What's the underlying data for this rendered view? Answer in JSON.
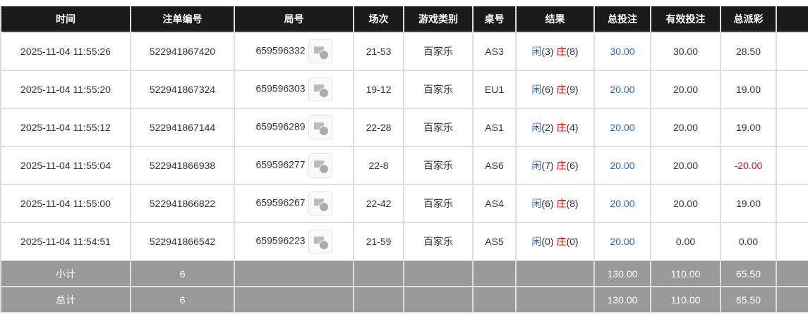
{
  "headers": [
    "时间",
    "注单编号",
    "局号",
    "场次",
    "游戏类别",
    "桌号",
    "结果",
    "总投注",
    "有效投注",
    "总派彩"
  ],
  "rows": [
    {
      "time": "2025-11-04 11:55:26",
      "bet_id": "522941867420",
      "round": "659596332",
      "shoe": "21-53",
      "game": "百家乐",
      "table": "AS3",
      "player_label": "闲",
      "player": "(3)",
      "banker_label": "庄",
      "banker": "(8)",
      "total": "30.00",
      "valid": "30.00",
      "payout": "28.50"
    },
    {
      "time": "2025-11-04 11:55:20",
      "bet_id": "522941867324",
      "round": "659596303",
      "shoe": "19-12",
      "game": "百家乐",
      "table": "EU1",
      "player_label": "闲",
      "player": "(6)",
      "banker_label": "庄",
      "banker": "(9)",
      "total": "20.00",
      "valid": "20.00",
      "payout": "19.00"
    },
    {
      "time": "2025-11-04 11:55:12",
      "bet_id": "522941867144",
      "round": "659596289",
      "shoe": "22-28",
      "game": "百家乐",
      "table": "AS1",
      "player_label": "闲",
      "player": "(2)",
      "banker_label": "庄",
      "banker": "(4)",
      "total": "20.00",
      "valid": "20.00",
      "payout": "19.00"
    },
    {
      "time": "2025-11-04 11:55:04",
      "bet_id": "522941866938",
      "round": "659596277",
      "shoe": "22-8",
      "game": "百家乐",
      "table": "AS6",
      "player_label": "闲",
      "player": "(7)",
      "banker_label": "庄",
      "banker": "(6)",
      "total": "20.00",
      "valid": "20.00",
      "payout": "-20.00"
    },
    {
      "time": "2025-11-04 11:55:00",
      "bet_id": "522941866822",
      "round": "659596267",
      "shoe": "22-42",
      "game": "百家乐",
      "table": "AS4",
      "player_label": "闲",
      "player": "(6)",
      "banker_label": "庄",
      "banker": "(8)",
      "total": "20.00",
      "valid": "20.00",
      "payout": "19.00"
    },
    {
      "time": "2025-11-04 11:54:51",
      "bet_id": "522941866542",
      "round": "659596223",
      "shoe": "21-59",
      "game": "百家乐",
      "table": "AS5",
      "player_label": "闲",
      "player": "(0)",
      "banker_label": "庄",
      "banker": "(0)",
      "total": "20.00",
      "valid": "0.00",
      "payout": "0.00"
    }
  ],
  "subtotal": {
    "label": "小计",
    "count": "6",
    "total": "130.00",
    "valid": "110.00",
    "payout": "65.50"
  },
  "grandtotal": {
    "label": "总计",
    "count": "6",
    "total": "130.00",
    "valid": "110.00",
    "payout": "65.50"
  },
  "colors": {
    "header": "#1b1b1b",
    "summary": "#999999",
    "player": "#2468d8",
    "banker": "#e01010",
    "negative": "#e01010"
  }
}
